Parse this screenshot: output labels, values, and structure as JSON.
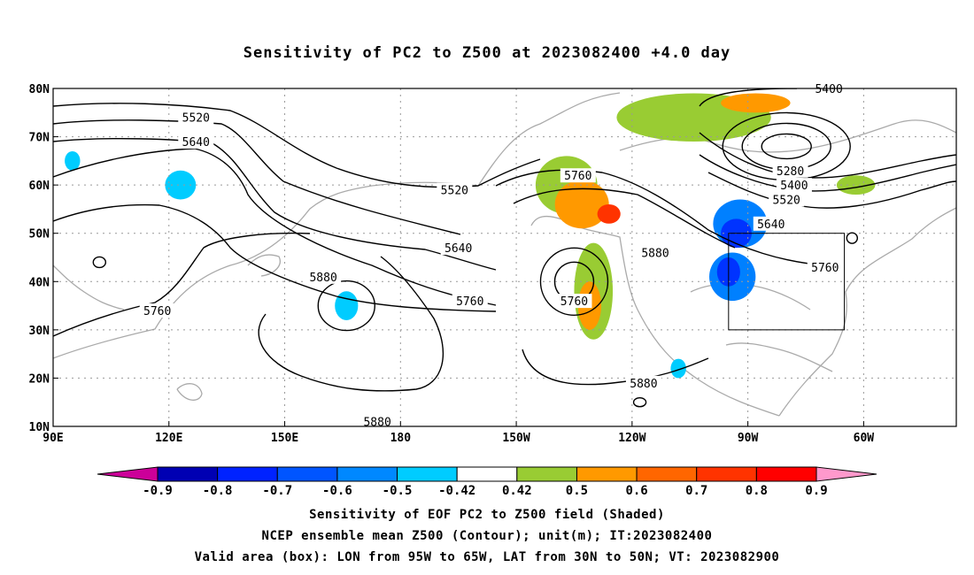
{
  "title": "Sensitivity of PC2 to Z500 at 2023082400 +4.0 day",
  "lon_ticks": [
    {
      "lon": 90,
      "label": "90E"
    },
    {
      "lon": 120,
      "label": "120E"
    },
    {
      "lon": 150,
      "label": "150E"
    },
    {
      "lon": 180,
      "label": "180"
    },
    {
      "lon": 210,
      "label": "150W"
    },
    {
      "lon": 240,
      "label": "120W"
    },
    {
      "lon": 270,
      "label": "90W"
    },
    {
      "lon": 300,
      "label": "60W"
    }
  ],
  "lat_ticks": [
    {
      "lat": 80,
      "label": "80N"
    },
    {
      "lat": 70,
      "label": "70N"
    },
    {
      "lat": 60,
      "label": "60N"
    },
    {
      "lat": 50,
      "label": "50N"
    },
    {
      "lat": 40,
      "label": "40N"
    },
    {
      "lat": 30,
      "label": "30N"
    },
    {
      "lat": 20,
      "label": "20N"
    },
    {
      "lat": 10,
      "label": "10N"
    }
  ],
  "map_extent": {
    "lon_min": 90,
    "lon_max": 324,
    "lat_min": 10,
    "lat_max": 80
  },
  "valid_box": {
    "lon_min": 265,
    "lon_max": 295,
    "lat_min": 30,
    "lat_max": 50
  },
  "contour_labels": [
    {
      "text": "5520",
      "lon": 127,
      "lat": 74
    },
    {
      "text": "5640",
      "lon": 127,
      "lat": 69
    },
    {
      "text": "5520",
      "lon": 194,
      "lat": 59
    },
    {
      "text": "5640",
      "lon": 195,
      "lat": 47
    },
    {
      "text": "5880",
      "lon": 160,
      "lat": 41
    },
    {
      "text": "5760",
      "lon": 198,
      "lat": 36
    },
    {
      "text": "5760",
      "lon": 117,
      "lat": 34
    },
    {
      "text": "5880",
      "lon": 174,
      "lat": 11
    },
    {
      "text": "5760",
      "lon": 226,
      "lat": 62
    },
    {
      "text": "5760",
      "lon": 225,
      "lat": 36
    },
    {
      "text": "5880",
      "lon": 246,
      "lat": 46
    },
    {
      "text": "5880",
      "lon": 243,
      "lat": 19
    },
    {
      "text": "5400",
      "lon": 291,
      "lat": 80
    },
    {
      "text": "5280",
      "lon": 281,
      "lat": 63
    },
    {
      "text": "5400",
      "lon": 282,
      "lat": 60
    },
    {
      "text": "5520",
      "lon": 280,
      "lat": 57
    },
    {
      "text": "5640",
      "lon": 276,
      "lat": 52
    },
    {
      "text": "5760",
      "lon": 290,
      "lat": 43
    }
  ],
  "shaded_regions": [
    {
      "sign": "positive",
      "level": 0.42,
      "color": "#99cc33",
      "lon": 223,
      "lat": 60,
      "rlon": 8,
      "rlat": 6
    },
    {
      "sign": "positive",
      "level": 0.5,
      "color": "#ff9900",
      "lon": 227,
      "lat": 56,
      "rlon": 7,
      "rlat": 5
    },
    {
      "sign": "positive",
      "level": 0.7,
      "color": "#ff3300",
      "lon": 234,
      "lat": 54,
      "rlon": 3,
      "rlat": 2
    },
    {
      "sign": "positive",
      "level": 0.42,
      "color": "#99cc33",
      "lon": 230,
      "lat": 38,
      "rlon": 5,
      "rlat": 10
    },
    {
      "sign": "positive",
      "level": 0.5,
      "color": "#ff9900",
      "lon": 229,
      "lat": 35,
      "rlon": 3,
      "rlat": 5
    },
    {
      "sign": "positive",
      "level": 0.42,
      "color": "#99cc33",
      "lon": 256,
      "lat": 74,
      "rlon": 20,
      "rlat": 5
    },
    {
      "sign": "positive",
      "level": 0.5,
      "color": "#ff9900",
      "lon": 272,
      "lat": 77,
      "rlon": 9,
      "rlat": 2
    },
    {
      "sign": "positive",
      "level": 0.42,
      "color": "#99cc33",
      "lon": 298,
      "lat": 60,
      "rlon": 5,
      "rlat": 2
    },
    {
      "sign": "negative",
      "level": -0.6,
      "color": "#0080ff",
      "lon": 268,
      "lat": 52,
      "rlon": 7,
      "rlat": 5
    },
    {
      "sign": "negative",
      "level": -0.8,
      "color": "#0033ff",
      "lon": 267,
      "lat": 50,
      "rlon": 4,
      "rlat": 3
    },
    {
      "sign": "negative",
      "level": -0.6,
      "color": "#0080ff",
      "lon": 266,
      "lat": 41,
      "rlon": 6,
      "rlat": 5
    },
    {
      "sign": "negative",
      "level": -0.8,
      "color": "#0033ff",
      "lon": 265,
      "lat": 42,
      "rlon": 3,
      "rlat": 3
    },
    {
      "sign": "negative",
      "level": -0.42,
      "color": "#00ccff",
      "lon": 123,
      "lat": 60,
      "rlon": 4,
      "rlat": 3
    },
    {
      "sign": "negative",
      "level": -0.42,
      "color": "#00ccff",
      "lon": 95,
      "lat": 65,
      "rlon": 2,
      "rlat": 2
    },
    {
      "sign": "negative",
      "level": -0.42,
      "color": "#00ccff",
      "lon": 166,
      "lat": 35,
      "rlon": 3,
      "rlat": 3
    },
    {
      "sign": "negative",
      "level": -0.42,
      "color": "#00ccff",
      "lon": 252,
      "lat": 22,
      "rlon": 2,
      "rlat": 2
    }
  ],
  "colorbar": {
    "colors": [
      "#0000b3",
      "#0022ff",
      "#0055ff",
      "#0088ff",
      "#00ccff",
      "#ffffff",
      "#99cc33",
      "#ff9900",
      "#ff6600",
      "#ff3300",
      "#ff0000"
    ],
    "tick_labels": [
      "-0.9",
      "-0.8",
      "-0.7",
      "-0.6",
      "-0.5",
      "-0.42",
      "0.42",
      "0.5",
      "0.6",
      "0.7",
      "0.8",
      "0.9"
    ],
    "low_end_color": "#cc0099",
    "high_end_color": "#ff99cc"
  },
  "footer": {
    "line1": "Sensitivity of EOF PC2 to Z500 field (Shaded)",
    "line2": "NCEP ensemble mean Z500 (Contour); unit(m); IT:2023082400",
    "line3": "Valid area (box): LON from 95W to 65W, LAT from 30N to 50N; VT: 2023082900"
  }
}
